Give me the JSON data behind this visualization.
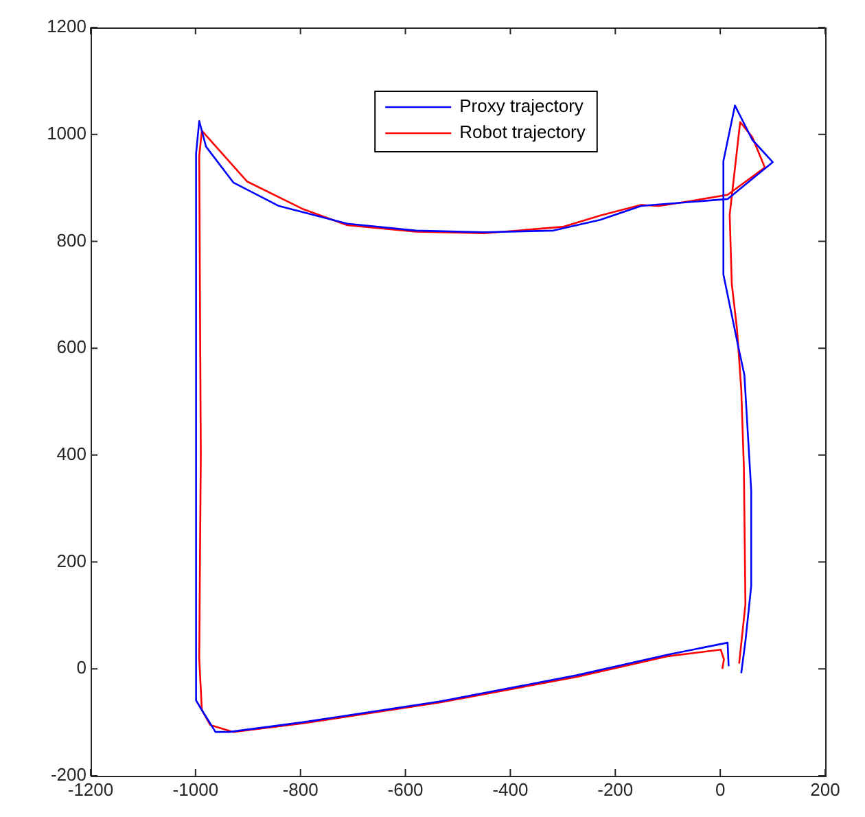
{
  "chart_data": {
    "type": "line",
    "xlim": [
      -1200,
      200
    ],
    "ylim": [
      -200,
      1200
    ],
    "xticks": [
      -1200,
      -1000,
      -800,
      -600,
      -400,
      -200,
      0,
      200
    ],
    "yticks": [
      -200,
      0,
      200,
      400,
      600,
      800,
      1000,
      1200
    ],
    "grid": false,
    "legend": "top",
    "marker": "none",
    "line_style": "solid",
    "series": [
      {
        "name": "Proxy trajectory",
        "color": "#0000ff",
        "x": [
          40,
          48,
          59,
          59,
          46,
          35,
          6,
          6,
          28,
          61,
          100,
          14,
          -116,
          -151,
          -229,
          -318,
          -449,
          -580,
          -711,
          -841,
          -928,
          -980,
          -993,
          -999,
          -999,
          -988,
          -962,
          -936,
          -797,
          -535,
          -274,
          -98,
          14,
          16
        ],
        "values": [
          -8,
          52,
          155,
          334,
          550,
          600,
          738,
          950,
          1054,
          990,
          948,
          879,
          869,
          866,
          840,
          820,
          817,
          820,
          833,
          866,
          910,
          977,
          1025,
          964,
          -59,
          -77,
          -118,
          -118,
          -100,
          -61,
          -12,
          27,
          49,
          5
        ]
      },
      {
        "name": "Robot trajectory",
        "color": "#ff0000",
        "x": [
          36,
          48,
          45,
          40,
          32,
          22,
          18,
          38,
          61,
          85,
          14,
          -64,
          -117,
          -151,
          -229,
          -300,
          -450,
          -580,
          -711,
          -797,
          -902,
          -988,
          -993,
          -990,
          -993,
          -988,
          -972,
          -928,
          -797,
          -535,
          -274,
          -98,
          1,
          7,
          4
        ],
        "values": [
          10,
          121,
          378,
          524,
          635,
          720,
          850,
          1023,
          995,
          938,
          887,
          874,
          866,
          868,
          848,
          827,
          815,
          818,
          830,
          861,
          912,
          1007,
          960,
          400,
          20,
          -77,
          -105,
          -118,
          -102,
          -63,
          -15,
          24,
          36,
          18,
          0
        ]
      }
    ]
  }
}
